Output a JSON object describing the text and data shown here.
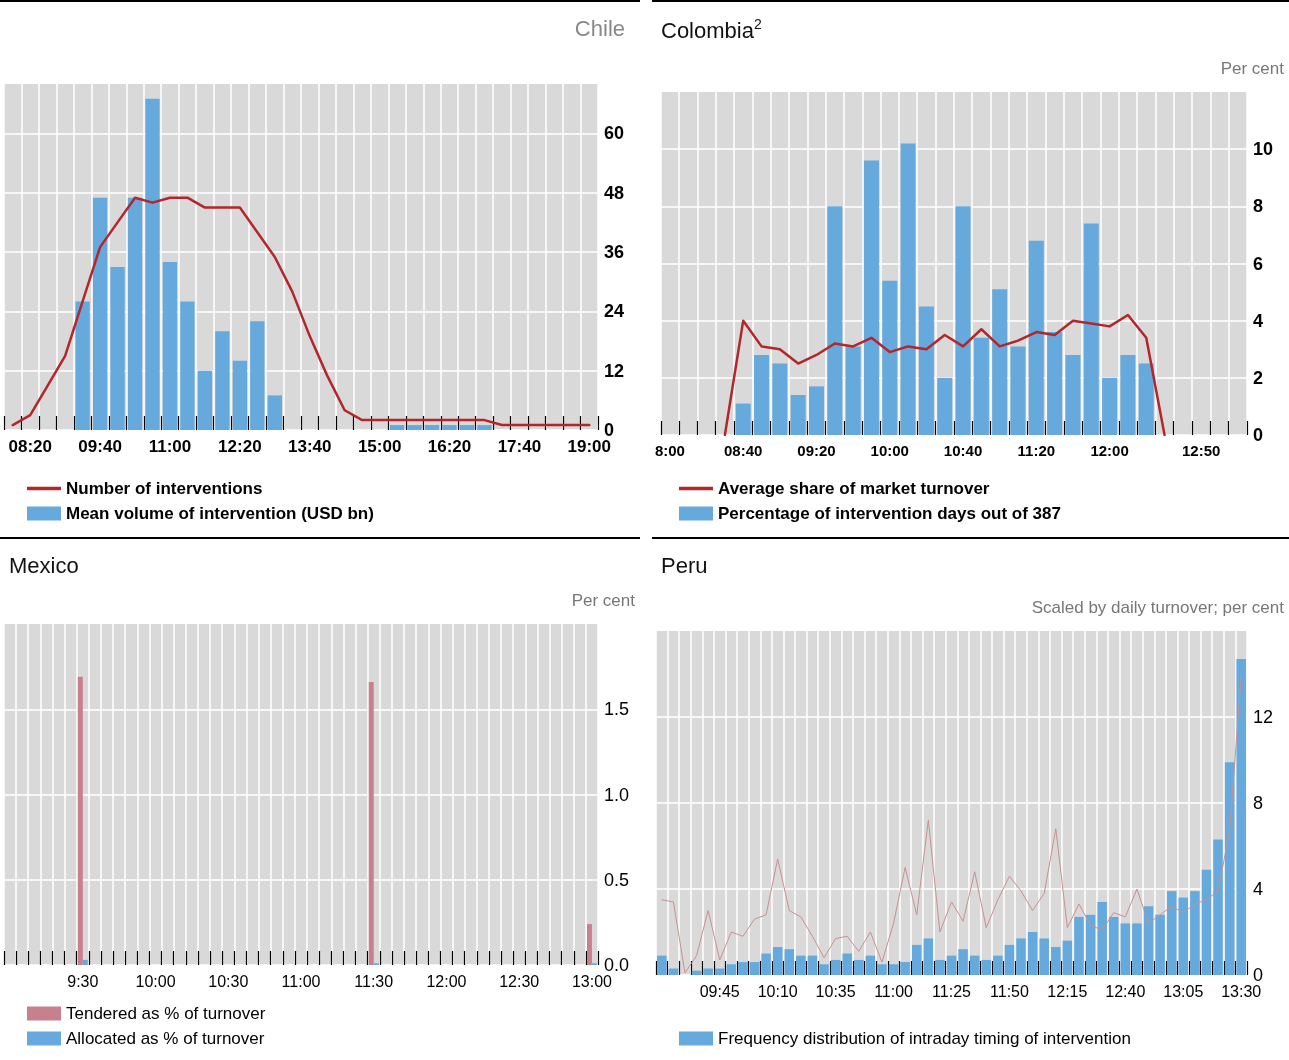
{
  "chart_data": [
    {
      "type": "bar",
      "title": "Chile",
      "categories": [
        null,
        "08:20",
        null,
        null,
        null,
        "09:40",
        null,
        null,
        null,
        "11:00",
        null,
        null,
        null,
        "12:20",
        null,
        null,
        null,
        "13:40",
        null,
        null,
        null,
        "15:00",
        null,
        null,
        null,
        "16:20",
        null,
        null,
        null,
        "17:40",
        null,
        null,
        null,
        "19:00"
      ],
      "series": [
        {
          "name": "Number of interventions",
          "type": "line",
          "color": "#b3262a",
          "values": [
            1,
            3,
            9,
            15,
            26,
            37,
            42,
            47,
            46,
            47,
            47,
            45,
            45,
            45,
            40,
            35,
            28,
            19,
            11,
            4,
            2,
            2,
            2,
            2,
            2,
            2,
            2,
            2,
            1,
            1,
            1,
            1,
            1,
            1
          ]
        },
        {
          "name": "Mean volume of intervention (USD bn)",
          "color": "#66aadd",
          "values": [
            null,
            null,
            null,
            null,
            26,
            47,
            33,
            47,
            67,
            34,
            26,
            12,
            20,
            14,
            22,
            7,
            null,
            null,
            null,
            null,
            null,
            null,
            1,
            1,
            1,
            1,
            1,
            1,
            null,
            null,
            null,
            null,
            null,
            null
          ]
        }
      ],
      "ylim": [
        0,
        70
      ],
      "yticks": [
        0,
        12,
        24,
        36,
        48,
        60
      ],
      "grid": true,
      "legend": "bottom left",
      "marker": "none"
    },
    {
      "type": "bar",
      "title": "Colombia$^{2}$",
      "ylabel": "Per cent",
      "categories": [
        "8:00",
        null,
        null,
        null,
        "08:40",
        null,
        null,
        null,
        "09:20",
        null,
        null,
        null,
        "10:00",
        null,
        null,
        null,
        "10:40",
        null,
        null,
        null,
        "11:20",
        null,
        null,
        null,
        "12:00",
        null,
        null,
        null,
        null,
        "12:50",
        null,
        null
      ],
      "series": [
        {
          "name": "Average share of market turnover",
          "type": "line",
          "color": "#b3262a",
          "values": [
            null,
            null,
            null,
            0,
            4.0,
            3.1,
            3.0,
            2.5,
            2.8,
            3.2,
            3.1,
            3.4,
            2.9,
            3.1,
            3.0,
            3.5,
            3.1,
            3.7,
            3.1,
            3.3,
            3.6,
            3.5,
            4.0,
            3.9,
            3.8,
            4.2,
            3.4,
            0,
            null,
            null,
            null,
            null
          ]
        },
        {
          "name": "Percentage of intervention days out of 387",
          "color": "#66aadd",
          "values": [
            null,
            null,
            null,
            null,
            1.1,
            2.8,
            2.5,
            1.4,
            1.7,
            8.0,
            3.1,
            9.6,
            5.4,
            10.2,
            4.5,
            2.0,
            8.0,
            3.4,
            5.1,
            3.1,
            6.8,
            3.6,
            2.8,
            7.4,
            2.0,
            2.8,
            2.5,
            null,
            null,
            null,
            null,
            null
          ]
        }
      ],
      "ylim": [
        0,
        12
      ],
      "yticks": [
        0,
        2,
        4,
        6,
        8,
        10
      ],
      "grid": true,
      "legend": "bottom left",
      "marker": "none"
    },
    {
      "type": "bar",
      "title": "Mexico",
      "ylabel": "Per cent",
      "categories": [
        null,
        null,
        null,
        null,
        null,
        null,
        "9:30",
        null,
        null,
        null,
        null,
        null,
        "10:00",
        null,
        null,
        null,
        null,
        null,
        "10:30",
        null,
        null,
        null,
        null,
        null,
        "11:00",
        null,
        null,
        null,
        null,
        null,
        "11:30",
        null,
        null,
        null,
        null,
        null,
        "12:00",
        null,
        null,
        null,
        null,
        null,
        "12:30",
        null,
        null,
        null,
        null,
        null,
        "13:00"
      ],
      "series": [
        {
          "name": "Tendered as % of turnover",
          "color": "#c8808f",
          "values": [
            null,
            null,
            null,
            null,
            null,
            null,
            1.69,
            null,
            null,
            null,
            null,
            null,
            null,
            null,
            null,
            null,
            null,
            null,
            null,
            null,
            null,
            null,
            null,
            null,
            null,
            null,
            null,
            null,
            null,
            null,
            1.66,
            null,
            null,
            null,
            null,
            null,
            null,
            null,
            null,
            null,
            null,
            null,
            null,
            null,
            null,
            null,
            null,
            null,
            0.24
          ]
        },
        {
          "name": "Allocated as % of turnover",
          "color": "#66aadd",
          "values": [
            null,
            null,
            null,
            null,
            null,
            null,
            0.03,
            null,
            null,
            null,
            null,
            null,
            null,
            null,
            null,
            null,
            null,
            null,
            null,
            null,
            null,
            null,
            null,
            null,
            null,
            null,
            null,
            null,
            null,
            null,
            0.01,
            null,
            null,
            null,
            null,
            null,
            null,
            null,
            null,
            null,
            null,
            null,
            null,
            null,
            null,
            null,
            null,
            null,
            0.01
          ]
        }
      ],
      "ylim": [
        0,
        2
      ],
      "yticks": [
        {
          "value": 0,
          "label": "0.0"
        },
        0.5,
        {
          "value": 1,
          "label": "1.0"
        },
        1.5
      ],
      "grid": true,
      "legend": "bottom left"
    },
    {
      "type": "bar",
      "title": "Peru",
      "ylabel": "Scaled by daily turnover; per cent",
      "categories": [
        null,
        null,
        null,
        null,
        null,
        "09:45",
        null,
        null,
        null,
        null,
        "10:10",
        null,
        null,
        null,
        null,
        "10:35",
        null,
        null,
        null,
        null,
        "11:00",
        null,
        null,
        null,
        null,
        "11:25",
        null,
        null,
        null,
        null,
        "11:50",
        null,
        null,
        null,
        null,
        "12:15",
        null,
        null,
        null,
        null,
        "12:40",
        null,
        null,
        null,
        null,
        "13:05",
        null,
        null,
        null,
        null,
        "13:30"
      ],
      "series": [
        {
          "type": "line",
          "color": "#c99090",
          "values": [
            3.5,
            3.4,
            0.1,
            0.9,
            3.0,
            0.7,
            2.0,
            1.8,
            2.6,
            2.8,
            5.4,
            3.0,
            2.7,
            1.8,
            0.8,
            1.7,
            1.8,
            1.1,
            2.0,
            0.6,
            2.4,
            5.0,
            2.8,
            7.2,
            2.0,
            3.4,
            2.5,
            4.8,
            2.2,
            3.5,
            4.6,
            3.9,
            3.0,
            3.8,
            6.8,
            2.2,
            3.3,
            2.3,
            2.1,
            2.9,
            2.7,
            4.0,
            2.4,
            2.8,
            3.2,
            2.9,
            3.3,
            3.5,
            3.9,
            6.7,
            13.9
          ]
        },
        {
          "name": "Frequency distribution of intraday timing of intervention",
          "color": "#66aadd",
          "values": [
            0.9,
            0.3,
            0,
            0.2,
            0.3,
            0.3,
            0.5,
            0.6,
            0.6,
            1.0,
            1.3,
            1.2,
            0.9,
            0.9,
            0.5,
            0.7,
            1.0,
            0.7,
            0.9,
            0.5,
            0.5,
            0.6,
            1.4,
            1.7,
            0.7,
            0.9,
            1.2,
            0.9,
            0.7,
            0.9,
            1.4,
            1.7,
            2.0,
            1.7,
            1.3,
            1.6,
            2.7,
            2.8,
            3.4,
            2.7,
            2.4,
            2.4,
            3.2,
            2.8,
            3.9,
            3.6,
            3.9,
            4.9,
            6.3,
            9.9,
            14.7
          ]
        }
      ],
      "ylim": [
        0,
        16
      ],
      "yticks": [
        0,
        4,
        8,
        12
      ],
      "grid": true,
      "legend": "bottom left",
      "marker": "none"
    }
  ]
}
